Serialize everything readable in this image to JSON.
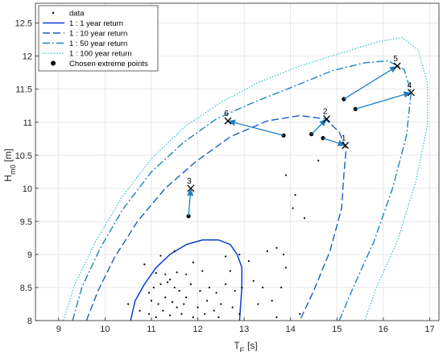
{
  "chart_data": {
    "type": "scatter",
    "xlim": [
      8.5,
      17.2
    ],
    "ylim": [
      8,
      12.8
    ],
    "xticks": [
      9,
      10,
      11,
      12,
      13,
      14,
      15,
      16,
      17
    ],
    "yticks": [
      8,
      8.5,
      9,
      9.5,
      10,
      10.5,
      11,
      11.5,
      12,
      12.5
    ],
    "grid": true,
    "legend_position": "top-left",
    "xlabel": {
      "main": "T",
      "sub": "E",
      "rest": " [s]"
    },
    "ylabel": {
      "main": "H",
      "sub": "m0",
      "rest": " [m]"
    },
    "colors": {
      "c1": "#0a3fd1",
      "c10": "#1a5fc0",
      "c50": "#1c84c6",
      "c100": "#2bc0c8",
      "arrow": "#1e7fc4"
    },
    "legend": [
      {
        "key": "data",
        "label": "data"
      },
      {
        "key": "c1",
        "label": "1 : 1 year return"
      },
      {
        "key": "c10",
        "label": "1 : 10 year return"
      },
      {
        "key": "c50",
        "label": "1 : 50 year return"
      },
      {
        "key": "c100",
        "label": "1 : 100 year return"
      },
      {
        "key": "chosen",
        "label": "Chosen extreme points"
      }
    ],
    "series": [
      {
        "key": "c1",
        "points": [
          [
            10.55,
            8
          ],
          [
            10.65,
            8.3
          ],
          [
            10.85,
            8.55
          ],
          [
            11.1,
            8.8
          ],
          [
            11.4,
            9
          ],
          [
            11.75,
            9.15
          ],
          [
            12.1,
            9.22
          ],
          [
            12.45,
            9.22
          ],
          [
            12.7,
            9.15
          ],
          [
            12.85,
            9
          ],
          [
            12.95,
            8.8
          ],
          [
            12.95,
            8.5
          ],
          [
            12.92,
            8.2
          ],
          [
            12.9,
            8
          ]
        ]
      },
      {
        "key": "c10",
        "points": [
          [
            9.6,
            8
          ],
          [
            9.85,
            8.45
          ],
          [
            10.2,
            8.95
          ],
          [
            10.7,
            9.5
          ],
          [
            11.3,
            10
          ],
          [
            11.95,
            10.4
          ],
          [
            12.7,
            10.78
          ],
          [
            13.5,
            11.02
          ],
          [
            14.2,
            11.1
          ],
          [
            14.75,
            11.05
          ],
          [
            15.05,
            10.85
          ],
          [
            15.2,
            10.6
          ],
          [
            15.15,
            10.2
          ],
          [
            15.1,
            9.7
          ],
          [
            14.85,
            9.05
          ],
          [
            14.5,
            8.45
          ],
          [
            14.2,
            8
          ]
        ]
      },
      {
        "key": "c50",
        "points": [
          [
            9.3,
            8
          ],
          [
            9.5,
            8.5
          ],
          [
            9.9,
            9.1
          ],
          [
            10.4,
            9.7
          ],
          [
            11,
            10.25
          ],
          [
            11.7,
            10.7
          ],
          [
            12.4,
            11.05
          ],
          [
            13.2,
            11.3
          ],
          [
            14.1,
            11.55
          ],
          [
            14.9,
            11.78
          ],
          [
            15.6,
            11.9
          ],
          [
            16.1,
            11.93
          ],
          [
            16.45,
            11.8
          ],
          [
            16.6,
            11.45
          ],
          [
            16.5,
            10.8
          ],
          [
            16.2,
            10
          ],
          [
            15.8,
            9.2
          ],
          [
            15.35,
            8.5
          ],
          [
            15.05,
            8
          ]
        ]
      },
      {
        "key": "c100",
        "points": [
          [
            9.1,
            8
          ],
          [
            9.35,
            8.55
          ],
          [
            9.8,
            9.2
          ],
          [
            10.35,
            9.85
          ],
          [
            11,
            10.45
          ],
          [
            11.75,
            10.95
          ],
          [
            12.5,
            11.3
          ],
          [
            13.3,
            11.6
          ],
          [
            14.2,
            11.85
          ],
          [
            15.1,
            12.05
          ],
          [
            15.9,
            12.22
          ],
          [
            16.4,
            12.28
          ],
          [
            16.75,
            12.1
          ],
          [
            16.95,
            11.6
          ],
          [
            16.95,
            10.95
          ],
          [
            16.7,
            10.1
          ],
          [
            16.3,
            9.2
          ],
          [
            15.85,
            8.5
          ],
          [
            15.6,
            8
          ]
        ]
      }
    ],
    "data_points": [
      [
        11.8,
        9.58
      ],
      [
        13.85,
        10.8
      ],
      [
        14.45,
        10.82
      ],
      [
        14.7,
        10.76
      ],
      [
        15.15,
        11.35
      ],
      [
        15.4,
        11.2
      ],
      [
        14.6,
        10.42
      ],
      [
        13.9,
        10.2
      ],
      [
        14.1,
        9.9
      ],
      [
        14.05,
        9.7
      ],
      [
        14.3,
        9.55
      ],
      [
        13.7,
        9.1
      ],
      [
        13.5,
        9.05
      ],
      [
        13.85,
        9.0
      ],
      [
        12.9,
        9.0
      ],
      [
        12.6,
        8.97
      ],
      [
        11.5,
        9.05
      ],
      [
        11.2,
        8.98
      ],
      [
        10.85,
        8.85
      ],
      [
        11.1,
        8.72
      ],
      [
        11.3,
        8.7
      ],
      [
        11.55,
        8.73
      ],
      [
        11.75,
        8.7
      ],
      [
        12.1,
        8.75
      ],
      [
        11.05,
        8.5
      ],
      [
        11.2,
        8.55
      ],
      [
        11.35,
        8.58
      ],
      [
        11.5,
        8.5
      ],
      [
        11.6,
        8.45
      ],
      [
        11.75,
        8.35
      ],
      [
        11.85,
        8.55
      ],
      [
        12.05,
        8.45
      ],
      [
        12.25,
        8.5
      ],
      [
        12.4,
        8.42
      ],
      [
        12.6,
        8.55
      ],
      [
        12.8,
        8.45
      ],
      [
        12.95,
        8.5
      ],
      [
        11.0,
        8.3
      ],
      [
        11.15,
        8.25
      ],
      [
        11.3,
        8.35
      ],
      [
        11.45,
        8.28
      ],
      [
        11.55,
        8.2
      ],
      [
        11.7,
        8.25
      ],
      [
        12.0,
        8.2
      ],
      [
        12.2,
        8.3
      ],
      [
        12.35,
        8.15
      ],
      [
        12.5,
        8.25
      ],
      [
        12.75,
        8.2
      ],
      [
        10.95,
        8.1
      ],
      [
        11.1,
        8.05
      ],
      [
        11.25,
        8.15
      ],
      [
        11.4,
        8.08
      ],
      [
        11.65,
        8.1
      ],
      [
        11.9,
        8.05
      ],
      [
        12.15,
        8.1
      ],
      [
        12.45,
        8.05
      ],
      [
        13.2,
        8.6
      ],
      [
        13.4,
        8.5
      ],
      [
        13.6,
        8.3
      ],
      [
        13.3,
        8.25
      ],
      [
        13.9,
        8.8
      ],
      [
        13.7,
        8.05
      ],
      [
        10.5,
        8.25
      ],
      [
        10.75,
        8.15
      ],
      [
        10.95,
        8.42
      ],
      [
        11.4,
        8.62
      ],
      [
        11.9,
        8.88
      ],
      [
        12.7,
        8.75
      ],
      [
        13.1,
        8.9
      ],
      [
        13.8,
        8.5
      ],
      [
        14.2,
        8.1
      ],
      [
        12.9,
        8.1
      ]
    ],
    "extreme_points": [
      {
        "label": "1",
        "from": [
          14.7,
          10.76
        ],
        "to": [
          15.18,
          10.65
        ]
      },
      {
        "label": "2",
        "from": [
          14.45,
          10.82
        ],
        "to": [
          14.78,
          11.05
        ]
      },
      {
        "label": "3",
        "from": [
          11.8,
          9.58
        ],
        "to": [
          11.85,
          10.0
        ]
      },
      {
        "label": "4",
        "from": [
          15.4,
          11.2
        ],
        "to": [
          16.6,
          11.45
        ]
      },
      {
        "label": "5",
        "from": [
          15.15,
          11.35
        ],
        "to": [
          16.3,
          11.85
        ]
      },
      {
        "label": "6",
        "from": [
          13.85,
          10.8
        ],
        "to": [
          12.65,
          11.02
        ]
      }
    ]
  }
}
